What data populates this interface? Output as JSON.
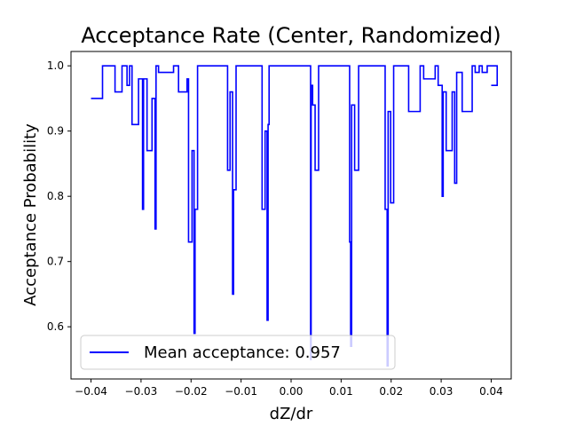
{
  "chart_data": {
    "type": "line",
    "title": "Acceptance Rate (Center, Randomized)",
    "xlabel": "dZ/dr",
    "ylabel": "Acceptance Probability",
    "xlim": [
      -0.044,
      0.044
    ],
    "ylim": [
      0.52,
      1.022
    ],
    "xticks": [
      -0.04,
      -0.03,
      -0.02,
      -0.01,
      0.0,
      0.01,
      0.02,
      0.03,
      0.04
    ],
    "xtick_labels": [
      "−0.04",
      "−0.03",
      "−0.02",
      "−0.01",
      "0.00",
      "0.01",
      "0.02",
      "0.03",
      "0.04"
    ],
    "yticks": [
      0.6,
      0.7,
      0.8,
      0.9,
      1.0
    ],
    "ytick_labels": [
      "0.6",
      "0.7",
      "0.8",
      "0.9",
      "1.0"
    ],
    "grid": false,
    "legend_position": "lower-left",
    "series": [
      {
        "name": "Mean acceptance: 0.957",
        "color": "#0000ff",
        "step": true,
        "points": [
          [
            -0.04,
            0.95
          ],
          [
            -0.0377,
            0.95
          ],
          [
            -0.0377,
            1.0
          ],
          [
            -0.0352,
            1.0
          ],
          [
            -0.0352,
            0.96
          ],
          [
            -0.0338,
            0.96
          ],
          [
            -0.0338,
            1.0
          ],
          [
            -0.0328,
            1.0
          ],
          [
            -0.0328,
            0.97
          ],
          [
            -0.0323,
            0.97
          ],
          [
            -0.0323,
            1.0
          ],
          [
            -0.0318,
            1.0
          ],
          [
            -0.0318,
            0.91
          ],
          [
            -0.0305,
            0.91
          ],
          [
            -0.0305,
            0.98
          ],
          [
            -0.0297,
            0.98
          ],
          [
            -0.0297,
            0.78
          ],
          [
            -0.0295,
            0.78
          ],
          [
            -0.0295,
            0.98
          ],
          [
            -0.0288,
            0.98
          ],
          [
            -0.0288,
            0.87
          ],
          [
            -0.0278,
            0.87
          ],
          [
            -0.0278,
            0.95
          ],
          [
            -0.0272,
            0.95
          ],
          [
            -0.0272,
            0.75
          ],
          [
            -0.027,
            0.75
          ],
          [
            -0.027,
            1.0
          ],
          [
            -0.0265,
            1.0
          ],
          [
            -0.0265,
            0.99
          ],
          [
            -0.0235,
            0.99
          ],
          [
            -0.0235,
            1.0
          ],
          [
            -0.0225,
            1.0
          ],
          [
            -0.0225,
            0.96
          ],
          [
            -0.0208,
            0.96
          ],
          [
            -0.0208,
            0.98
          ],
          [
            -0.0205,
            0.98
          ],
          [
            -0.0205,
            0.73
          ],
          [
            -0.0198,
            0.73
          ],
          [
            -0.0198,
            0.87
          ],
          [
            -0.0194,
            0.87
          ],
          [
            -0.0194,
            0.59
          ],
          [
            -0.0192,
            0.59
          ],
          [
            -0.0192,
            0.78
          ],
          [
            -0.0187,
            0.78
          ],
          [
            -0.0187,
            1.0
          ],
          [
            -0.0127,
            1.0
          ],
          [
            -0.0127,
            0.84
          ],
          [
            -0.0122,
            0.84
          ],
          [
            -0.0122,
            0.96
          ],
          [
            -0.0117,
            0.96
          ],
          [
            -0.0117,
            0.65
          ],
          [
            -0.0115,
            0.65
          ],
          [
            -0.0115,
            0.81
          ],
          [
            -0.011,
            0.81
          ],
          [
            -0.011,
            1.0
          ],
          [
            -0.0058,
            1.0
          ],
          [
            -0.0058,
            0.78
          ],
          [
            -0.0052,
            0.78
          ],
          [
            -0.0052,
            0.9
          ],
          [
            -0.0048,
            0.9
          ],
          [
            -0.0048,
            0.61
          ],
          [
            -0.0046,
            0.61
          ],
          [
            -0.0046,
            0.91
          ],
          [
            -0.0044,
            0.91
          ],
          [
            -0.0044,
            1.0
          ],
          [
            0.0039,
            1.0
          ],
          [
            0.0039,
            0.55
          ],
          [
            0.004,
            0.55
          ],
          [
            0.004,
            0.97
          ],
          [
            0.0043,
            0.97
          ],
          [
            0.0043,
            0.94
          ],
          [
            0.0048,
            0.94
          ],
          [
            0.0048,
            0.84
          ],
          [
            0.0055,
            0.84
          ],
          [
            0.0055,
            1.0
          ],
          [
            0.0117,
            1.0
          ],
          [
            0.0117,
            0.73
          ],
          [
            0.0119,
            0.73
          ],
          [
            0.0119,
            0.57
          ],
          [
            0.0121,
            0.57
          ],
          [
            0.0121,
            0.94
          ],
          [
            0.0127,
            0.94
          ],
          [
            0.0127,
            0.84
          ],
          [
            0.0135,
            0.84
          ],
          [
            0.0135,
            1.0
          ],
          [
            0.0188,
            1.0
          ],
          [
            0.0188,
            0.78
          ],
          [
            0.0192,
            0.78
          ],
          [
            0.0192,
            0.54
          ],
          [
            0.0194,
            0.54
          ],
          [
            0.0194,
            0.93
          ],
          [
            0.0199,
            0.93
          ],
          [
            0.0199,
            0.79
          ],
          [
            0.0205,
            0.79
          ],
          [
            0.0205,
            1.0
          ],
          [
            0.0235,
            1.0
          ],
          [
            0.0235,
            0.93
          ],
          [
            0.0258,
            0.93
          ],
          [
            0.0258,
            1.0
          ],
          [
            0.0265,
            1.0
          ],
          [
            0.0265,
            0.98
          ],
          [
            0.0288,
            0.98
          ],
          [
            0.0288,
            1.0
          ],
          [
            0.0294,
            1.0
          ],
          [
            0.0294,
            0.97
          ],
          [
            0.0302,
            0.97
          ],
          [
            0.0302,
            0.8
          ],
          [
            0.0304,
            0.8
          ],
          [
            0.0304,
            0.96
          ],
          [
            0.031,
            0.96
          ],
          [
            0.031,
            0.87
          ],
          [
            0.0322,
            0.87
          ],
          [
            0.0322,
            0.96
          ],
          [
            0.0327,
            0.96
          ],
          [
            0.0327,
            0.82
          ],
          [
            0.0331,
            0.82
          ],
          [
            0.0331,
            0.99
          ],
          [
            0.0342,
            0.99
          ],
          [
            0.0342,
            0.93
          ],
          [
            0.0362,
            0.93
          ],
          [
            0.0362,
            1.0
          ],
          [
            0.0368,
            1.0
          ],
          [
            0.0368,
            0.99
          ],
          [
            0.0376,
            0.99
          ],
          [
            0.0376,
            1.0
          ],
          [
            0.0382,
            1.0
          ],
          [
            0.0382,
            0.99
          ],
          [
            0.0392,
            0.99
          ],
          [
            0.0392,
            1.0
          ],
          [
            0.0412,
            1.0
          ],
          [
            0.0412,
            0.97
          ],
          [
            0.04,
            0.97
          ]
        ]
      }
    ]
  }
}
